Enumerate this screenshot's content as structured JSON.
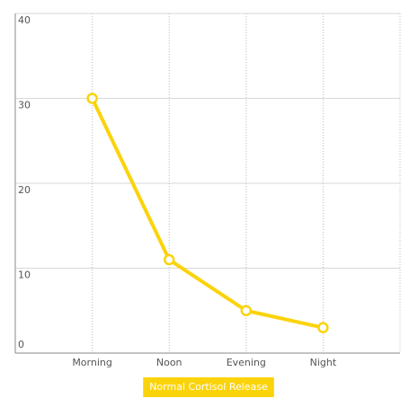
{
  "chart_data": {
    "type": "line",
    "categories": [
      "Morning",
      "Noon",
      "Evening",
      "Night"
    ],
    "series": [
      {
        "name": "Normal Cortisol Release",
        "color": "#fbd30a",
        "values": [
          30,
          11,
          5,
          3
        ]
      }
    ],
    "ylim": [
      0,
      40
    ],
    "yticks": [
      0,
      10,
      20,
      30,
      40
    ],
    "grid": true,
    "legend": "bottom"
  }
}
